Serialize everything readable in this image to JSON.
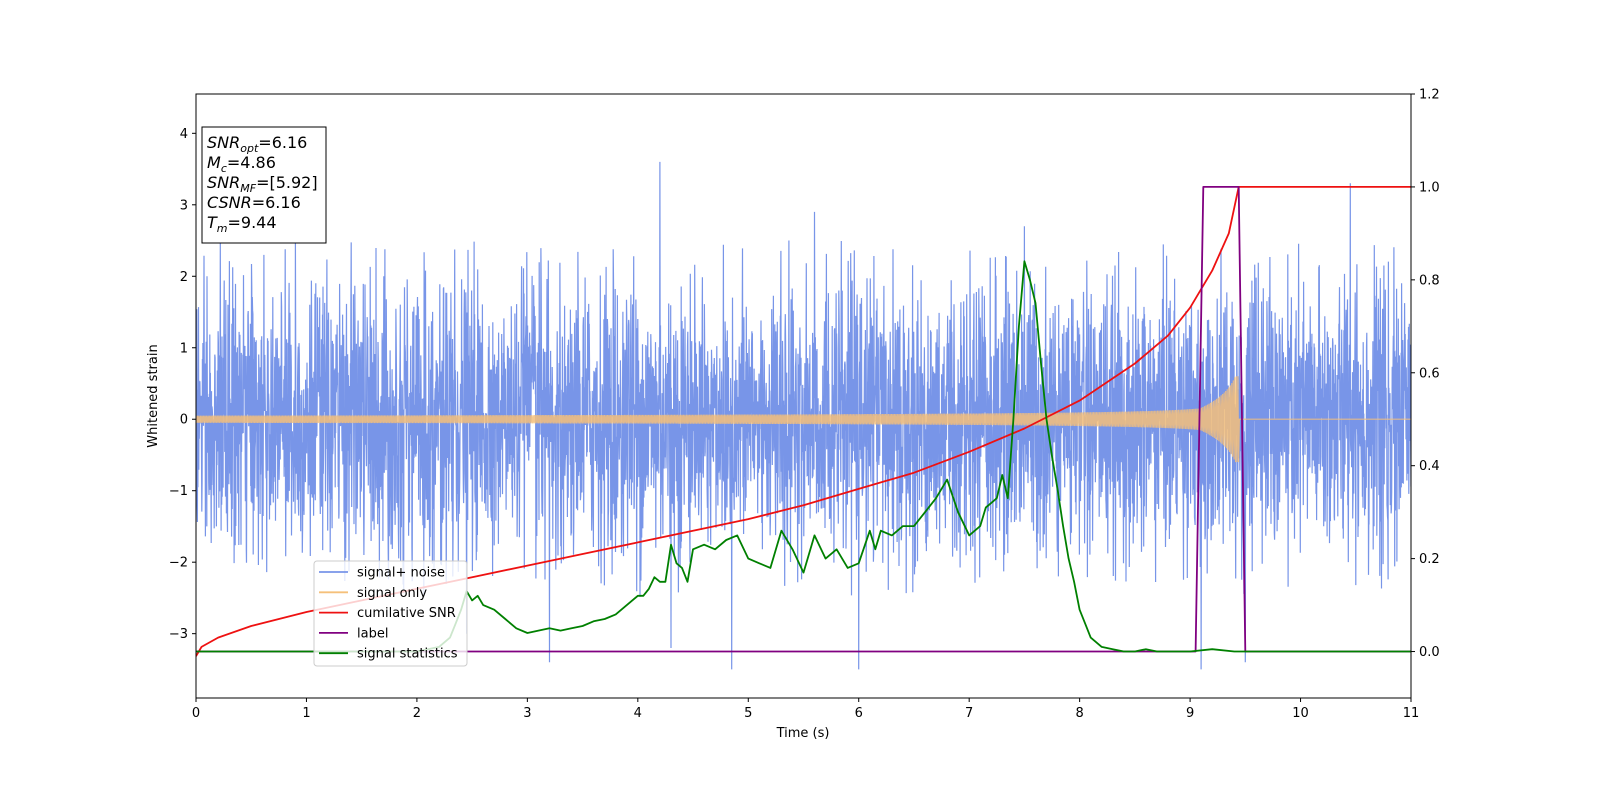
{
  "chart_data": {
    "type": "line",
    "xlabel": "Time (s)",
    "ylabel": "Whitened strain",
    "xlim": [
      0,
      11
    ],
    "ylim": [
      -3.9,
      4.55
    ],
    "y2lim": [
      -0.1,
      1.2
    ],
    "x_ticks": [
      0,
      1,
      2,
      3,
      4,
      5,
      6,
      7,
      8,
      9,
      10,
      11
    ],
    "y_ticks": [
      -3,
      -2,
      -1,
      0,
      1,
      2,
      3,
      4
    ],
    "y_tick_labels": [
      "−3",
      "−2",
      "−1",
      "0",
      "1",
      "2",
      "3",
      "4"
    ],
    "y2_ticks": [
      0.0,
      0.2,
      0.4,
      0.6,
      0.8,
      1.0,
      1.2
    ],
    "y2_tick_labels": [
      "0.0",
      "0.2",
      "0.4",
      "0.6",
      "0.8",
      "1.0",
      "1.2"
    ],
    "grid": false,
    "legend_position": "lower-left",
    "annotation": {
      "lines": [
        {
          "base": "SNR",
          "sub": "opt",
          "value": "=6.16"
        },
        {
          "base": "M",
          "sub": "c",
          "value": "=4.86"
        },
        {
          "base": "SNR",
          "sub": "MF",
          "value": "=[5.92]"
        },
        {
          "base": "CSNR",
          "sub": "",
          "value": "=6.16"
        },
        {
          "base": "T",
          "sub": "m",
          "value": "=9.44"
        }
      ]
    },
    "series": [
      {
        "name": "signal+ noise",
        "axis": "left",
        "color": "#7895e8",
        "kind": "noise",
        "typical_range": [
          -2.5,
          2.5
        ],
        "spikes": [
          [
            0.1,
            2.0
          ],
          [
            0.9,
            2.5
          ],
          [
            1.7,
            2.0
          ],
          [
            2.45,
            -3.0
          ],
          [
            3.2,
            -3.4
          ],
          [
            4.2,
            3.6
          ],
          [
            4.3,
            -3.2
          ],
          [
            4.85,
            -3.5
          ],
          [
            5.6,
            2.9
          ],
          [
            6.0,
            -3.5
          ],
          [
            7.5,
            2.7
          ],
          [
            9.1,
            -3.5
          ],
          [
            9.5,
            -3.4
          ],
          [
            10.45,
            3.3
          ]
        ]
      },
      {
        "name": "signal only",
        "axis": "left",
        "color": "#f5c07a",
        "kind": "chirp",
        "t_merger": 9.44,
        "peak_amplitude": 0.6
      },
      {
        "name": "cumilative SNR",
        "axis": "right",
        "color": "#ee1111",
        "x": [
          0.0,
          0.05,
          0.2,
          0.5,
          1.0,
          1.5,
          2.0,
          2.5,
          3.0,
          3.5,
          4.0,
          4.5,
          5.0,
          5.5,
          6.0,
          6.5,
          7.0,
          7.5,
          8.0,
          8.5,
          8.8,
          9.0,
          9.2,
          9.35,
          9.44,
          11.0
        ],
        "y": [
          -0.01,
          0.01,
          0.03,
          0.055,
          0.085,
          0.11,
          0.135,
          0.16,
          0.185,
          0.21,
          0.235,
          0.26,
          0.285,
          0.315,
          0.35,
          0.385,
          0.43,
          0.48,
          0.54,
          0.62,
          0.68,
          0.74,
          0.82,
          0.9,
          1.0,
          1.0
        ]
      },
      {
        "name": "label",
        "axis": "right",
        "color": "#800080",
        "x": [
          0.0,
          9.05,
          9.12,
          9.44,
          9.5,
          11.0
        ],
        "y": [
          0.0,
          0.0,
          1.0,
          1.0,
          0.0,
          0.0
        ]
      },
      {
        "name": "signal statistics",
        "axis": "right",
        "color": "#008000",
        "x": [
          0.0,
          2.0,
          2.1,
          2.2,
          2.3,
          2.35,
          2.4,
          2.45,
          2.5,
          2.55,
          2.6,
          2.7,
          2.8,
          2.9,
          3.0,
          3.1,
          3.2,
          3.3,
          3.4,
          3.5,
          3.6,
          3.7,
          3.8,
          3.9,
          4.0,
          4.05,
          4.1,
          4.15,
          4.2,
          4.25,
          4.3,
          4.35,
          4.4,
          4.45,
          4.5,
          4.6,
          4.7,
          4.8,
          4.9,
          5.0,
          5.1,
          5.2,
          5.3,
          5.4,
          5.5,
          5.6,
          5.7,
          5.8,
          5.9,
          6.0,
          6.1,
          6.15,
          6.2,
          6.3,
          6.4,
          6.5,
          6.6,
          6.7,
          6.8,
          6.9,
          7.0,
          7.1,
          7.15,
          7.2,
          7.25,
          7.3,
          7.35,
          7.4,
          7.45,
          7.5,
          7.55,
          7.6,
          7.65,
          7.7,
          7.75,
          7.8,
          7.85,
          7.9,
          7.95,
          8.0,
          8.05,
          8.1,
          8.2,
          8.3,
          8.4,
          8.5,
          8.6,
          8.7,
          8.8,
          9.0,
          9.2,
          9.4,
          9.6,
          11.0
        ],
        "y": [
          0.0,
          0.0,
          0.005,
          0.01,
          0.03,
          0.06,
          0.09,
          0.13,
          0.11,
          0.12,
          0.1,
          0.09,
          0.07,
          0.05,
          0.04,
          0.045,
          0.05,
          0.045,
          0.05,
          0.055,
          0.065,
          0.07,
          0.08,
          0.1,
          0.12,
          0.12,
          0.135,
          0.16,
          0.15,
          0.15,
          0.23,
          0.19,
          0.18,
          0.15,
          0.22,
          0.23,
          0.22,
          0.24,
          0.25,
          0.2,
          0.19,
          0.18,
          0.26,
          0.22,
          0.17,
          0.25,
          0.2,
          0.22,
          0.18,
          0.19,
          0.26,
          0.22,
          0.26,
          0.25,
          0.27,
          0.27,
          0.3,
          0.33,
          0.37,
          0.3,
          0.25,
          0.27,
          0.31,
          0.32,
          0.33,
          0.38,
          0.33,
          0.5,
          0.7,
          0.84,
          0.8,
          0.75,
          0.62,
          0.5,
          0.42,
          0.35,
          0.27,
          0.2,
          0.15,
          0.09,
          0.06,
          0.03,
          0.01,
          0.005,
          0.0,
          0.0,
          0.005,
          0.0,
          0.0,
          0.0,
          0.005,
          0.0,
          0.0,
          0.0
        ]
      }
    ]
  }
}
